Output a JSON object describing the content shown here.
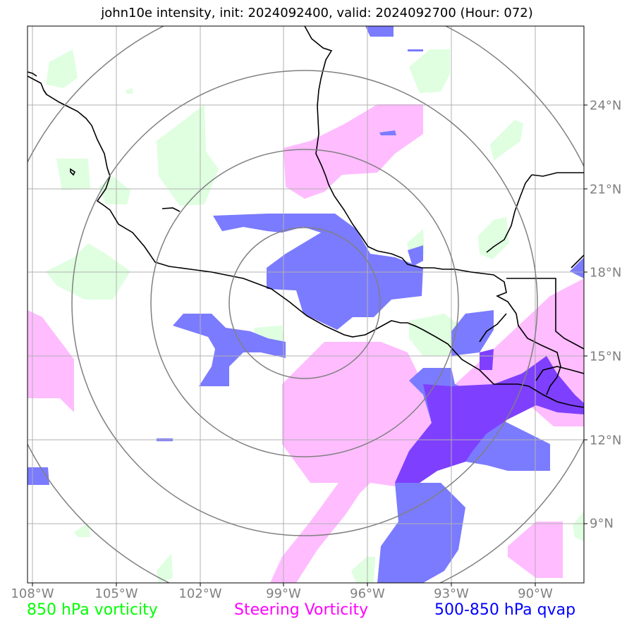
{
  "title": "john10e intensity, init: 2024092400, valid: 2024092700 (Hour: 072)",
  "lon_labels": [
    "108°W",
    "105°W",
    "102°W",
    "99°W",
    "96°W",
    "93°W",
    "90°W"
  ],
  "lat_labels": [
    "24°N",
    "21°N",
    "18°N",
    "15°N",
    "12°N",
    "9°N"
  ],
  "legend": {
    "vort850": "850 hPa vorticity",
    "steering": "Steering Vorticity",
    "qvap": "500-850 hPa qvap"
  },
  "colors": {
    "vort850_text": "#00ff00",
    "steering_text": "#ff00ff",
    "qvap_text": "#0000ff",
    "vort850_fill": "#dfffe0",
    "steering_fill": "#ffbcff",
    "qvap_fill": "#7b7bff",
    "overlap_fill": "#7f3fff",
    "grid": "#b0b0b0",
    "rings": "#808080",
    "coast": "#000000"
  },
  "map": {
    "lon_range": [
      -108.2,
      -88.3
    ],
    "lat_range": [
      7.0,
      26.9
    ],
    "center": [
      -98.2,
      17.0
    ],
    "ring_radii_deg": [
      2.7,
      5.5,
      8.3,
      11.1
    ]
  }
}
